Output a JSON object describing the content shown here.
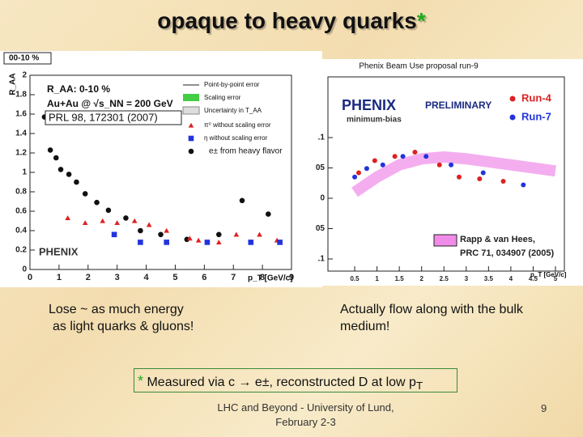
{
  "title": "opaque to heavy quarks",
  "title_mark": "*",
  "left_text": [
    "Lose ~ as much energy",
    "as light quarks & gluons!"
  ],
  "right_text": "Actually flow along with the bulk medium!",
  "footnote": {
    "mark": "*",
    "text": "Measured via c → e±, reconstructed D at low p",
    "subscript": "T"
  },
  "footer": [
    "LHC and Beyond - University of Lund,",
    "February 2-3"
  ],
  "page_number": "9",
  "chart_data": [
    {
      "type": "scatter",
      "corner_label": "00-10 %",
      "y_label": "R_AA",
      "x_label": "p_T [GeV/c]",
      "notes": [
        "R_AA: 0-10 %",
        "Au+Au @ √s_NN = 200 GeV",
        "PRL 98, 172301 (2007)",
        "Point-by-point error",
        "Scaling error",
        "Uncertainty in T_AA",
        "PHENIX"
      ],
      "xlim": [
        0,
        9
      ],
      "xticks": [
        0,
        1,
        2,
        3,
        4,
        5,
        6,
        7,
        8,
        9
      ],
      "ylim": [
        0,
        2
      ],
      "yticks": [
        0,
        0.2,
        0.4,
        0.6,
        0.8,
        1,
        1.2,
        1.4,
        1.6,
        1.8,
        2
      ],
      "series": [
        {
          "name": "e± from heavy flavor",
          "color": "#111111",
          "marker": "circle",
          "x": [
            0.5,
            0.7,
            0.9,
            1.06,
            1.34,
            1.6,
            1.9,
            2.3,
            2.7,
            3.3,
            3.8,
            4.5,
            5.4,
            6.5,
            7.3,
            8.2
          ],
          "values": [
            1.57,
            1.23,
            1.15,
            1.03,
            0.98,
            0.9,
            0.78,
            0.69,
            0.61,
            0.53,
            0.4,
            0.36,
            0.31,
            0.36,
            0.71,
            0.57
          ]
        },
        {
          "name": "π⁰ without scaling error",
          "color": "#dd2222",
          "marker": "triangle",
          "x": [
            1.3,
            1.9,
            2.5,
            3.0,
            3.6,
            4.1,
            4.7,
            5.5,
            5.8,
            6.5,
            7.1,
            7.9,
            8.5
          ],
          "values": [
            0.53,
            0.48,
            0.5,
            0.48,
            0.5,
            0.46,
            0.4,
            0.32,
            0.3,
            0.28,
            0.36,
            0.36,
            0.3
          ]
        },
        {
          "name": "η without scaling error",
          "color": "#2233dd",
          "marker": "square",
          "x": [
            2.9,
            3.8,
            4.7,
            6.1,
            7.6,
            8.6
          ],
          "values": [
            0.36,
            0.28,
            0.28,
            0.28,
            0.28,
            0.28
          ]
        }
      ]
    },
    {
      "type": "scatter",
      "title": "Phenix Beam Use proposal run-9",
      "x_label": "p_T [GeV/c]",
      "notes": [
        "PHENIX",
        "PRELIMINARY",
        "minimum-bias",
        "PRC 71, 034907 (2005)"
      ],
      "xlim": [
        -0.1,
        5.2
      ],
      "xticks": [
        0.5,
        1,
        1.5,
        2,
        2.5,
        3,
        3.5,
        4,
        4.5,
        5
      ],
      "ylim": [
        -0.12,
        0.2
      ],
      "yticks": [
        {
          "value": 0.1,
          "label": ".1"
        },
        {
          "value": 0.05,
          "label": "05"
        },
        0,
        {
          "value": -0.05,
          "label": "05"
        },
        {
          "value": -0.1,
          "label": ".1"
        }
      ],
      "series": [
        {
          "name": "Rapp & van Hees,",
          "color": "#f08ce8",
          "style": "band",
          "x": [
            0.5,
            1,
            1.5,
            2,
            2.5,
            3,
            3.5,
            4,
            4.5,
            5
          ],
          "values": [
            0.01,
            0.035,
            0.055,
            0.065,
            0.068,
            0.065,
            0.06,
            0.055,
            0.05,
            0.045
          ]
        },
        {
          "name": "Run-4",
          "color": "#dd2222",
          "marker": "circle",
          "x": [
            0.59,
            0.95,
            1.4,
            1.85,
            2.4,
            2.84,
            3.3,
            3.83
          ],
          "values": [
            0.042,
            0.062,
            0.069,
            0.076,
            0.055,
            0.035,
            0.032,
            0.028
          ]
        },
        {
          "name": "Run-7",
          "color": "#2233dd",
          "marker": "circle",
          "x": [
            0.5,
            0.77,
            1.13,
            1.58,
            2.1,
            2.66,
            3.38,
            4.28
          ],
          "values": [
            0.035,
            0.049,
            0.055,
            0.069,
            0.069,
            0.055,
            0.042,
            0.022
          ]
        }
      ]
    }
  ]
}
